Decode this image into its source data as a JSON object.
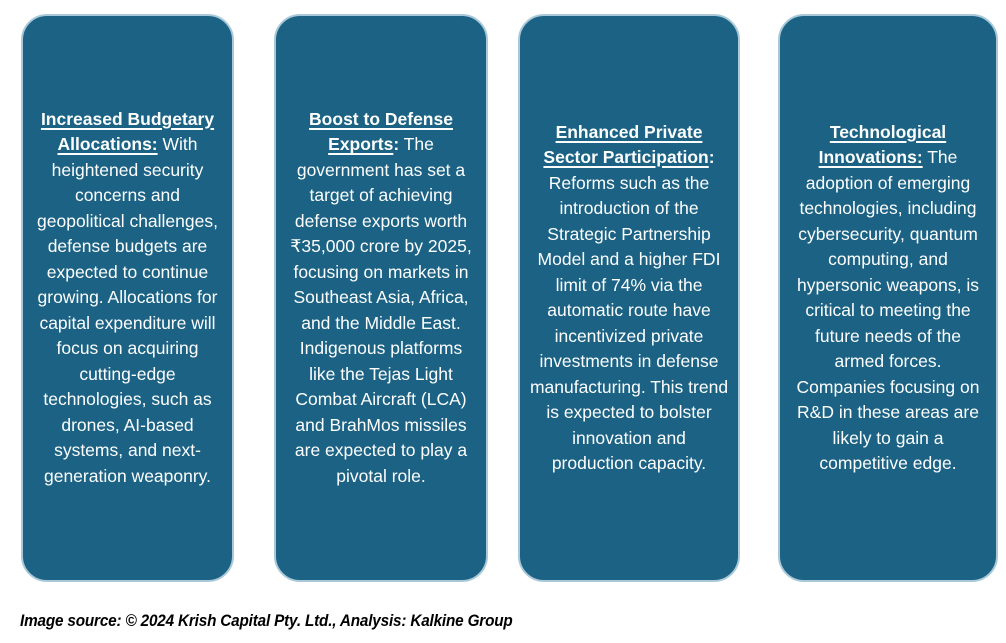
{
  "colors": {
    "card_fill": "#1B6284",
    "card_border": "#A9C9D9",
    "card_text": "#FDFEFE",
    "footer_text": "#000000",
    "background": "#FFFFFF"
  },
  "cards": [
    {
      "heading": "Increased Budgetary Allocations:",
      "sep": "",
      "body": " With heightened security concerns and geopolitical challenges, defense budgets are expected to continue growing. Allocations for capital expenditure will focus on acquiring cutting-edge technologies, such as drones, AI-based systems, and next-generation weaponry."
    },
    {
      "heading": "Boost to Defense Exports",
      "sep": ":",
      "body": " The government has set a target of achieving defense exports worth ₹35,000 crore by 2025, focusing on markets in Southeast Asia, Africa, and the Middle East. Indigenous platforms like the Tejas Light Combat Aircraft (LCA) and BrahMos missiles are expected to play a pivotal role."
    },
    {
      "heading": "Enhanced Private Sector Participation",
      "sep": ":",
      "body": " Reforms such as the introduction of the Strategic Partnership Model and a higher FDI limit of 74% via the automatic route have incentivized private investments in defense manufacturing. This trend is expected to bolster innovation and production capacity."
    },
    {
      "heading": "Technological Innovations:",
      "sep": "",
      "body": " The adoption of emerging technologies, including cybersecurity, quantum computing, and hypersonic weapons, is critical to meeting the future needs of the armed forces. Companies focusing on R&D in these areas are likely to gain a competitive edge."
    }
  ],
  "footer": {
    "text": "Image source: © 2024 Krish Capital Pty. Ltd., Analysis: Kalkine Group"
  }
}
